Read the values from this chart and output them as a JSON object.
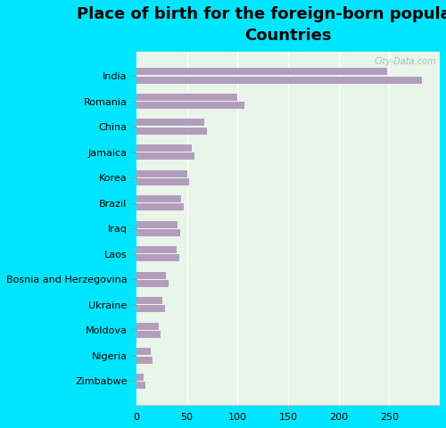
{
  "title": "Place of birth for the foreign-born population -\nCountries",
  "categories": [
    "India",
    "Romania",
    "China",
    "Jamaica",
    "Korea",
    "Brazil",
    "Iraq",
    "Laos",
    "Bosnia and Herzegovina",
    "Ukraine",
    "Moldova",
    "Nigeria",
    "Zimbabwe"
  ],
  "values1": [
    282,
    107,
    70,
    57,
    52,
    47,
    43,
    42,
    32,
    28,
    24,
    16,
    9
  ],
  "values2": [
    248,
    100,
    67,
    55,
    50,
    44,
    41,
    40,
    29,
    26,
    22,
    14,
    7
  ],
  "bar_color": "#b39dbd",
  "background_color": "#00e5ff",
  "plot_bg_top": "#e0f2e9",
  "plot_bg_bottom": "#e0f2e9",
  "xlim": [
    0,
    300
  ],
  "xticks": [
    0,
    50,
    100,
    150,
    200,
    250
  ],
  "bar_height": 0.28,
  "bar_gap": 0.04,
  "figsize": [
    5.0,
    4.8
  ],
  "dpi": 100,
  "title_fontsize": 13,
  "tick_fontsize": 8
}
